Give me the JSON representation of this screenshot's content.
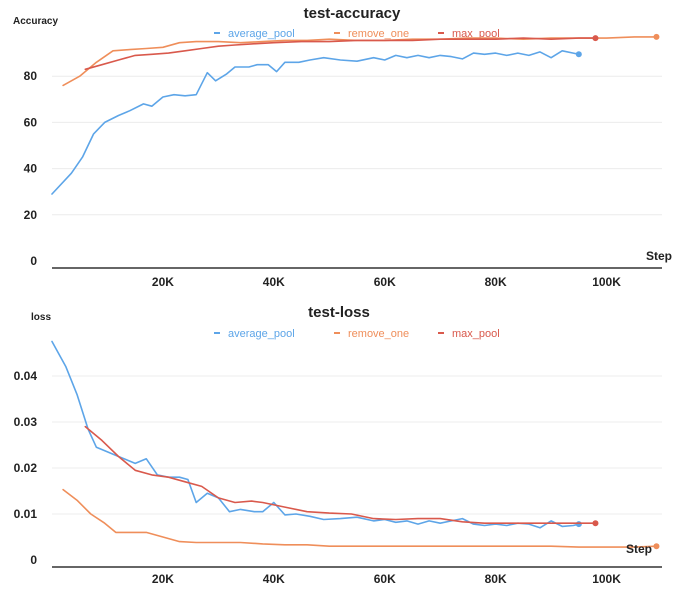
{
  "chart_data": [
    {
      "type": "line",
      "title": "test-accuracy",
      "ylabel": "Accuracy",
      "xlabel": "Step",
      "xlim": [
        0,
        110000
      ],
      "ylim": [
        0,
        100
      ],
      "x_ticks": [
        20000,
        40000,
        60000,
        80000,
        100000
      ],
      "x_tick_labels": [
        "20K",
        "40K",
        "60K",
        "80K",
        "100K"
      ],
      "y_ticks": [
        0,
        20,
        40,
        60,
        80
      ],
      "y_tick_labels": [
        "0",
        "20",
        "40",
        "60",
        "80"
      ],
      "legend_position": "top",
      "series": [
        {
          "name": "average_pool",
          "color": "#5da5e8",
          "x": [
            0,
            3500,
            5500,
            7500,
            9500,
            12000,
            14000,
            16500,
            18000,
            20000,
            22000,
            24000,
            26000,
            28000,
            29500,
            31500,
            33000,
            35500,
            37000,
            39000,
            40500,
            42000,
            44500,
            46500,
            49000,
            52000,
            55000,
            58000,
            60000,
            62000,
            64000,
            66000,
            68000,
            70000,
            72000,
            74000,
            76000,
            78000,
            80000,
            82000,
            84000,
            86000,
            88000,
            90000,
            92000,
            94000,
            95000
          ],
          "y": [
            29,
            38,
            45,
            55,
            60,
            63,
            65,
            68,
            67,
            71,
            72,
            71.5,
            72,
            81.5,
            78,
            81,
            84,
            84,
            85,
            85,
            82,
            86,
            86,
            87,
            88,
            87,
            86.5,
            88,
            87,
            89,
            88,
            89,
            88,
            89,
            88.5,
            87.5,
            90,
            89.5,
            90,
            89,
            90,
            89,
            90.5,
            88,
            91,
            90,
            89.5
          ]
        },
        {
          "name": "remove_one",
          "color": "#ef8e5a",
          "x": [
            2000,
            5000,
            8000,
            11000,
            14000,
            17000,
            20000,
            23000,
            26000,
            30000,
            34000,
            38000,
            42000,
            46000,
            50000,
            55000,
            60000,
            65000,
            70000,
            75000,
            80000,
            85000,
            90000,
            95000,
            100000,
            105000,
            109000
          ],
          "y": [
            76,
            80,
            86,
            91,
            91.5,
            92,
            92.5,
            94.5,
            95,
            95,
            94.5,
            95,
            95.5,
            95.5,
            96,
            95.5,
            95.5,
            96,
            96,
            96.5,
            96.5,
            96,
            96.5,
            96.5,
            96.5,
            97,
            97
          ]
        },
        {
          "name": "max_pool",
          "color": "#d9594c",
          "x": [
            6000,
            9000,
            12000,
            15000,
            18000,
            21000,
            24000,
            27000,
            30000,
            33000,
            36000,
            40000,
            45000,
            50000,
            55000,
            60000,
            65000,
            70000,
            75000,
            80000,
            85000,
            90000,
            95000,
            98000
          ],
          "y": [
            83,
            85,
            87,
            89,
            89.5,
            90,
            91,
            92,
            93,
            93.5,
            94,
            94.5,
            95,
            95,
            95.5,
            95.5,
            95.5,
            96,
            96,
            96,
            96.5,
            96,
            96.5,
            96.5
          ]
        }
      ]
    },
    {
      "type": "line",
      "title": "test-loss",
      "ylabel": "loss",
      "xlabel": "Step",
      "xlim": [
        0,
        110000
      ],
      "ylim": [
        0,
        0.05
      ],
      "x_ticks": [
        20000,
        40000,
        60000,
        80000,
        100000
      ],
      "x_tick_labels": [
        "20K",
        "40K",
        "60K",
        "80K",
        "100K"
      ],
      "y_ticks": [
        0,
        0.01,
        0.02,
        0.03,
        0.04
      ],
      "y_tick_labels": [
        "0",
        "0.01",
        "0.02",
        "0.03",
        "0.04"
      ],
      "legend_position": "top",
      "series": [
        {
          "name": "average_pool",
          "color": "#5da5e8",
          "x": [
            0,
            2500,
            4500,
            6500,
            8000,
            10000,
            12000,
            15000,
            17000,
            19000,
            21000,
            23000,
            24500,
            26000,
            28000,
            30000,
            32000,
            34000,
            36500,
            38000,
            40000,
            42000,
            44000,
            46500,
            49000,
            52000,
            55000,
            58000,
            60000,
            62000,
            64000,
            66000,
            68000,
            70000,
            72000,
            74000,
            76000,
            78000,
            80000,
            82000,
            84000,
            86000,
            88000,
            90000,
            92000,
            94000,
            95000
          ],
          "y": [
            0.0475,
            0.042,
            0.036,
            0.0285,
            0.0245,
            0.0235,
            0.0225,
            0.021,
            0.022,
            0.0185,
            0.018,
            0.018,
            0.0175,
            0.0125,
            0.0145,
            0.0135,
            0.0105,
            0.011,
            0.0105,
            0.0105,
            0.0125,
            0.0098,
            0.01,
            0.0095,
            0.0088,
            0.009,
            0.0093,
            0.0085,
            0.0088,
            0.0082,
            0.0085,
            0.0078,
            0.0085,
            0.008,
            0.0085,
            0.009,
            0.0078,
            0.0075,
            0.0078,
            0.0075,
            0.008,
            0.0078,
            0.007,
            0.0085,
            0.0073,
            0.0075,
            0.0078
          ]
        },
        {
          "name": "remove_one",
          "color": "#ef8e5a",
          "x": [
            2000,
            4500,
            7000,
            9500,
            11500,
            14000,
            17000,
            20000,
            23000,
            26000,
            30000,
            34000,
            38000,
            42000,
            46000,
            50000,
            55000,
            60000,
            65000,
            70000,
            75000,
            80000,
            85000,
            90000,
            95000,
            100000,
            105000,
            109000
          ],
          "y": [
            0.0153,
            0.013,
            0.01,
            0.008,
            0.006,
            0.006,
            0.006,
            0.005,
            0.004,
            0.0038,
            0.0038,
            0.0038,
            0.0035,
            0.0033,
            0.0033,
            0.003,
            0.003,
            0.003,
            0.003,
            0.003,
            0.003,
            0.003,
            0.003,
            0.003,
            0.0028,
            0.0028,
            0.0028,
            0.003
          ]
        },
        {
          "name": "max_pool",
          "color": "#d9594c",
          "x": [
            6000,
            9000,
            12000,
            15000,
            18000,
            21000,
            24000,
            27000,
            30000,
            33000,
            36000,
            38000,
            42000,
            46000,
            50000,
            54000,
            58000,
            62000,
            66000,
            70000,
            74000,
            78000,
            82000,
            86000,
            90000,
            94000,
            98000
          ],
          "y": [
            0.029,
            0.026,
            0.0225,
            0.0195,
            0.0185,
            0.018,
            0.017,
            0.016,
            0.0135,
            0.0125,
            0.0128,
            0.0125,
            0.0115,
            0.0105,
            0.0102,
            0.01,
            0.009,
            0.0088,
            0.009,
            0.009,
            0.0083,
            0.008,
            0.008,
            0.008,
            0.008,
            0.008,
            0.008
          ]
        }
      ]
    }
  ]
}
